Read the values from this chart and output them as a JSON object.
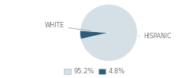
{
  "slices": [
    95.2,
    4.8
  ],
  "labels": [
    "WHITE",
    "HISPANIC"
  ],
  "colors": [
    "#d4dfe6",
    "#2e5f7a"
  ],
  "legend_labels": [
    "95.2%",
    "4.8%"
  ],
  "startangle": -167,
  "bg_color": "#ffffff",
  "label_fontsize": 5.5,
  "legend_fontsize": 6.0,
  "text_color": "#777777"
}
